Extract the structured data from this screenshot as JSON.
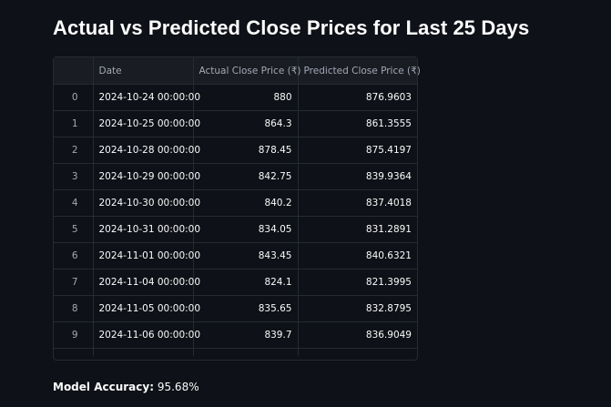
{
  "title": "Actual vs Predicted Close Prices for Last 25 Days",
  "table": {
    "columns": [
      "",
      "Date",
      "Actual Close Price (₹)",
      "Predicted Close Price (₹)"
    ],
    "rows": [
      {
        "index": "0",
        "date": "2024-10-24 00:00:00",
        "actual": "880",
        "predicted": "876.9603"
      },
      {
        "index": "1",
        "date": "2024-10-25 00:00:00",
        "actual": "864.3",
        "predicted": "861.3555"
      },
      {
        "index": "2",
        "date": "2024-10-28 00:00:00",
        "actual": "878.45",
        "predicted": "875.4197"
      },
      {
        "index": "3",
        "date": "2024-10-29 00:00:00",
        "actual": "842.75",
        "predicted": "839.9364"
      },
      {
        "index": "4",
        "date": "2024-10-30 00:00:00",
        "actual": "840.2",
        "predicted": "837.4018"
      },
      {
        "index": "5",
        "date": "2024-10-31 00:00:00",
        "actual": "834.05",
        "predicted": "831.2891"
      },
      {
        "index": "6",
        "date": "2024-11-01 00:00:00",
        "actual": "843.45",
        "predicted": "840.6321"
      },
      {
        "index": "7",
        "date": "2024-11-04 00:00:00",
        "actual": "824.1",
        "predicted": "821.3995"
      },
      {
        "index": "8",
        "date": "2024-11-05 00:00:00",
        "actual": "835.65",
        "predicted": "832.8795"
      },
      {
        "index": "9",
        "date": "2024-11-06 00:00:00",
        "actual": "839.7",
        "predicted": "836.9049"
      }
    ]
  },
  "accuracy": {
    "label": "Model Accuracy:",
    "value": "95.68%"
  }
}
